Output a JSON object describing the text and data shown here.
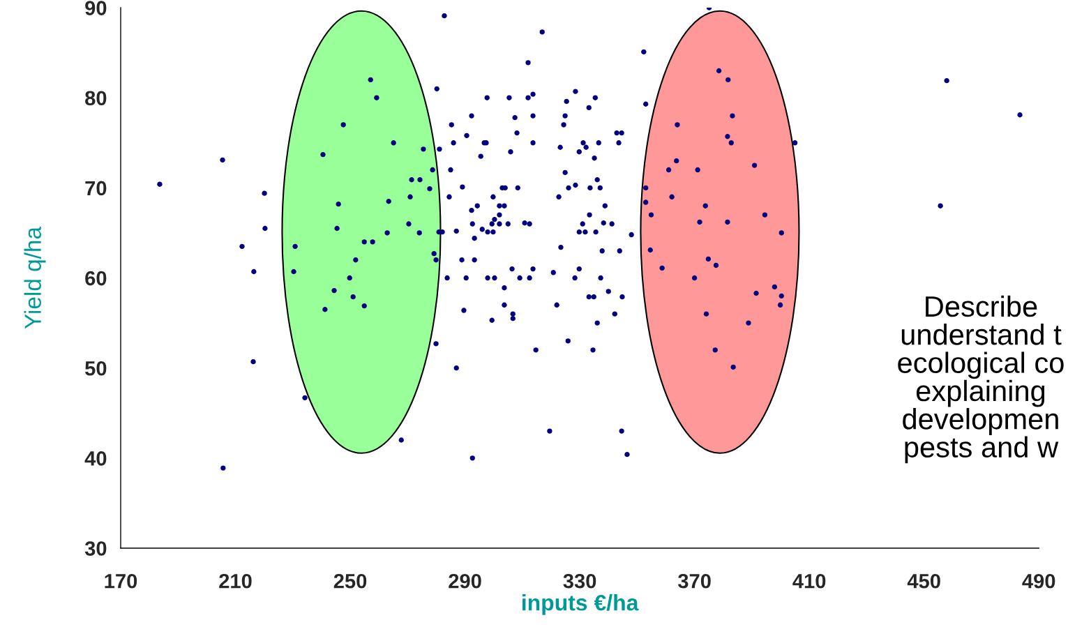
{
  "chart_data": {
    "type": "scatter",
    "xlabel": "inputs €/ha",
    "ylabel": "Yield q/ha",
    "annotations": [
      "Describe\nunderstand t\necological co\nexplaining\ndevelopmen\npests and w"
    ],
    "x": [
      183.6,
      205.5,
      212.3,
      216.2,
      216.4,
      220.1,
      220.3,
      205.7,
      230.3,
      230.8,
      234.2,
      240.5,
      241.2,
      244.4,
      245.4,
      245.9,
      247.6,
      249.8,
      251.0,
      251.9,
      254.9,
      254.9,
      257.1,
      257.8,
      259.2,
      262.9,
      263.4,
      265.1,
      267.8,
      270.4,
      270.9,
      271.4,
      274.3,
      274.1,
      275.5,
      277.7,
      278.7,
      279.2,
      279.9,
      280.2,
      280.9,
      282.1,
      281.1,
      279.9,
      282.8,
      316.9,
      312.0,
      328.5,
      297.7,
      305.4,
      312.0,
      313.7,
      335.4,
      325.4,
      333.2,
      292.3,
      307.4,
      313.7,
      324.9,
      285.3,
      324.4,
      308.1,
      290.6,
      342.9,
      344.6,
      286.0,
      296.7,
      297.4,
      313.7,
      331.2,
      336.6,
      343.6,
      323.2,
      332.2,
      329.8,
      305.9,
      295.5,
      335.1,
      285.0,
      324.9,
      336.1,
      289.1,
      303.0,
      304.0,
      308.4,
      326.1,
      328.5,
      333.6,
      337.1,
      284.5,
      299.8,
      322.7,
      338.8,
      294.3,
      292.3,
      302.0,
      303.7,
      302.0,
      300.3,
      333.4,
      292.6,
      299.4,
      302.0,
      305.0,
      310.8,
      312.5,
      331.0,
      338.3,
      341.2,
      287.0,
      296.0,
      297.9,
      299.8,
      329.8,
      331.9,
      335.6,
      348.0,
      293.3,
      323.4,
      337.8,
      343.9,
      288.9,
      293.3,
      306.4,
      313.7,
      320.8,
      329.8,
      283.8,
      290.4,
      297.9,
      300.3,
      309.1,
      312.5,
      328.3,
      337.3,
      303.7,
      340.0,
      333.2,
      334.9,
      344.8,
      303.7,
      322.0,
      289.6,
      306.7,
      306.7,
      299.4,
      342.2,
      336.1,
      325.9,
      314.7,
      334.6,
      287.0,
      319.5,
      344.6,
      292.6,
      346.5,
      375.1,
      352.3,
      378.5,
      381.7,
      353.0,
      383.2,
      364.0,
      381.5,
      382.8,
      405.0,
      363.7,
      390.9,
      361.0,
      371.1,
      353.0,
      362.1,
      353.0,
      373.8,
      354.9,
      394.5,
      371.8,
      381.5,
      400.3,
      354.6,
      374.8,
      377.5,
      358.7,
      370.0,
      397.9,
      391.5,
      400.3,
      399.9,
      374.1,
      388.8,
      377.2,
      383.5,
      457.9,
      483.4,
      455.7
    ],
    "values": [
      70.4,
      73.1,
      63.5,
      50.7,
      60.7,
      69.4,
      65.5,
      38.9,
      60.7,
      63.5,
      46.7,
      73.7,
      56.5,
      58.6,
      65.5,
      68.2,
      77.0,
      60.0,
      57.9,
      62.0,
      56.9,
      64.0,
      82.0,
      64.0,
      80.0,
      65.0,
      68.5,
      75.0,
      42.0,
      66.0,
      69.0,
      70.9,
      70.9,
      65.0,
      74.3,
      69.9,
      72.0,
      62.7,
      62.0,
      81.0,
      65.1,
      65.1,
      74.3,
      52.7,
      89.1,
      87.3,
      83.9,
      80.7,
      80.0,
      80.0,
      80.0,
      80.4,
      80.0,
      79.6,
      78.9,
      78.0,
      77.8,
      78.0,
      78.0,
      77.0,
      77.0,
      76.1,
      75.8,
      76.1,
      76.1,
      75.0,
      75.0,
      75.0,
      75.0,
      75.0,
      75.0,
      75.0,
      74.5,
      74.5,
      74.0,
      74.0,
      73.5,
      73.3,
      72.0,
      71.7,
      70.9,
      70.1,
      70.0,
      70.0,
      70.0,
      70.0,
      70.3,
      70.0,
      70.0,
      69.0,
      69.0,
      69.0,
      68.0,
      68.0,
      67.5,
      68.0,
      68.0,
      67.0,
      66.5,
      67.0,
      66.0,
      66.0,
      66.0,
      66.0,
      66.1,
      66.0,
      66.0,
      66.1,
      66.0,
      65.2,
      65.4,
      65.1,
      65.1,
      65.1,
      65.1,
      65.1,
      64.8,
      64.4,
      63.4,
      63.0,
      63.0,
      62.0,
      62.0,
      61.0,
      61.0,
      60.6,
      61.0,
      60.0,
      60.0,
      60.0,
      60.0,
      60.0,
      60.0,
      60.0,
      60.0,
      58.9,
      58.5,
      57.9,
      57.9,
      57.9,
      57.0,
      57.0,
      56.4,
      56.0,
      55.5,
      55.3,
      56.0,
      55.0,
      53.0,
      52.0,
      52.0,
      50.0,
      43.0,
      43.0,
      40.0,
      40.4,
      90.0,
      85.1,
      83.0,
      82.0,
      79.3,
      78.0,
      77.0,
      75.7,
      75.0,
      75.0,
      73.0,
      72.5,
      72.0,
      72.0,
      70.0,
      69.0,
      68.4,
      68.0,
      67.0,
      67.0,
      66.2,
      66.2,
      65.0,
      63.1,
      62.1,
      61.4,
      61.1,
      60.0,
      59.0,
      58.3,
      58.0,
      57.0,
      56.0,
      55.0,
      52.0,
      50.1,
      81.9,
      78.1,
      68.0
    ],
    "color": "#000080",
    "marker": "circle",
    "grid": false,
    "legend": false,
    "xlim": [
      170,
      490
    ],
    "xticks": [
      170,
      210,
      250,
      290,
      330,
      370,
      410,
      450,
      490
    ],
    "ylim": [
      30,
      90
    ],
    "yticks": [
      30,
      40,
      50,
      60,
      70,
      80,
      90
    ]
  }
}
